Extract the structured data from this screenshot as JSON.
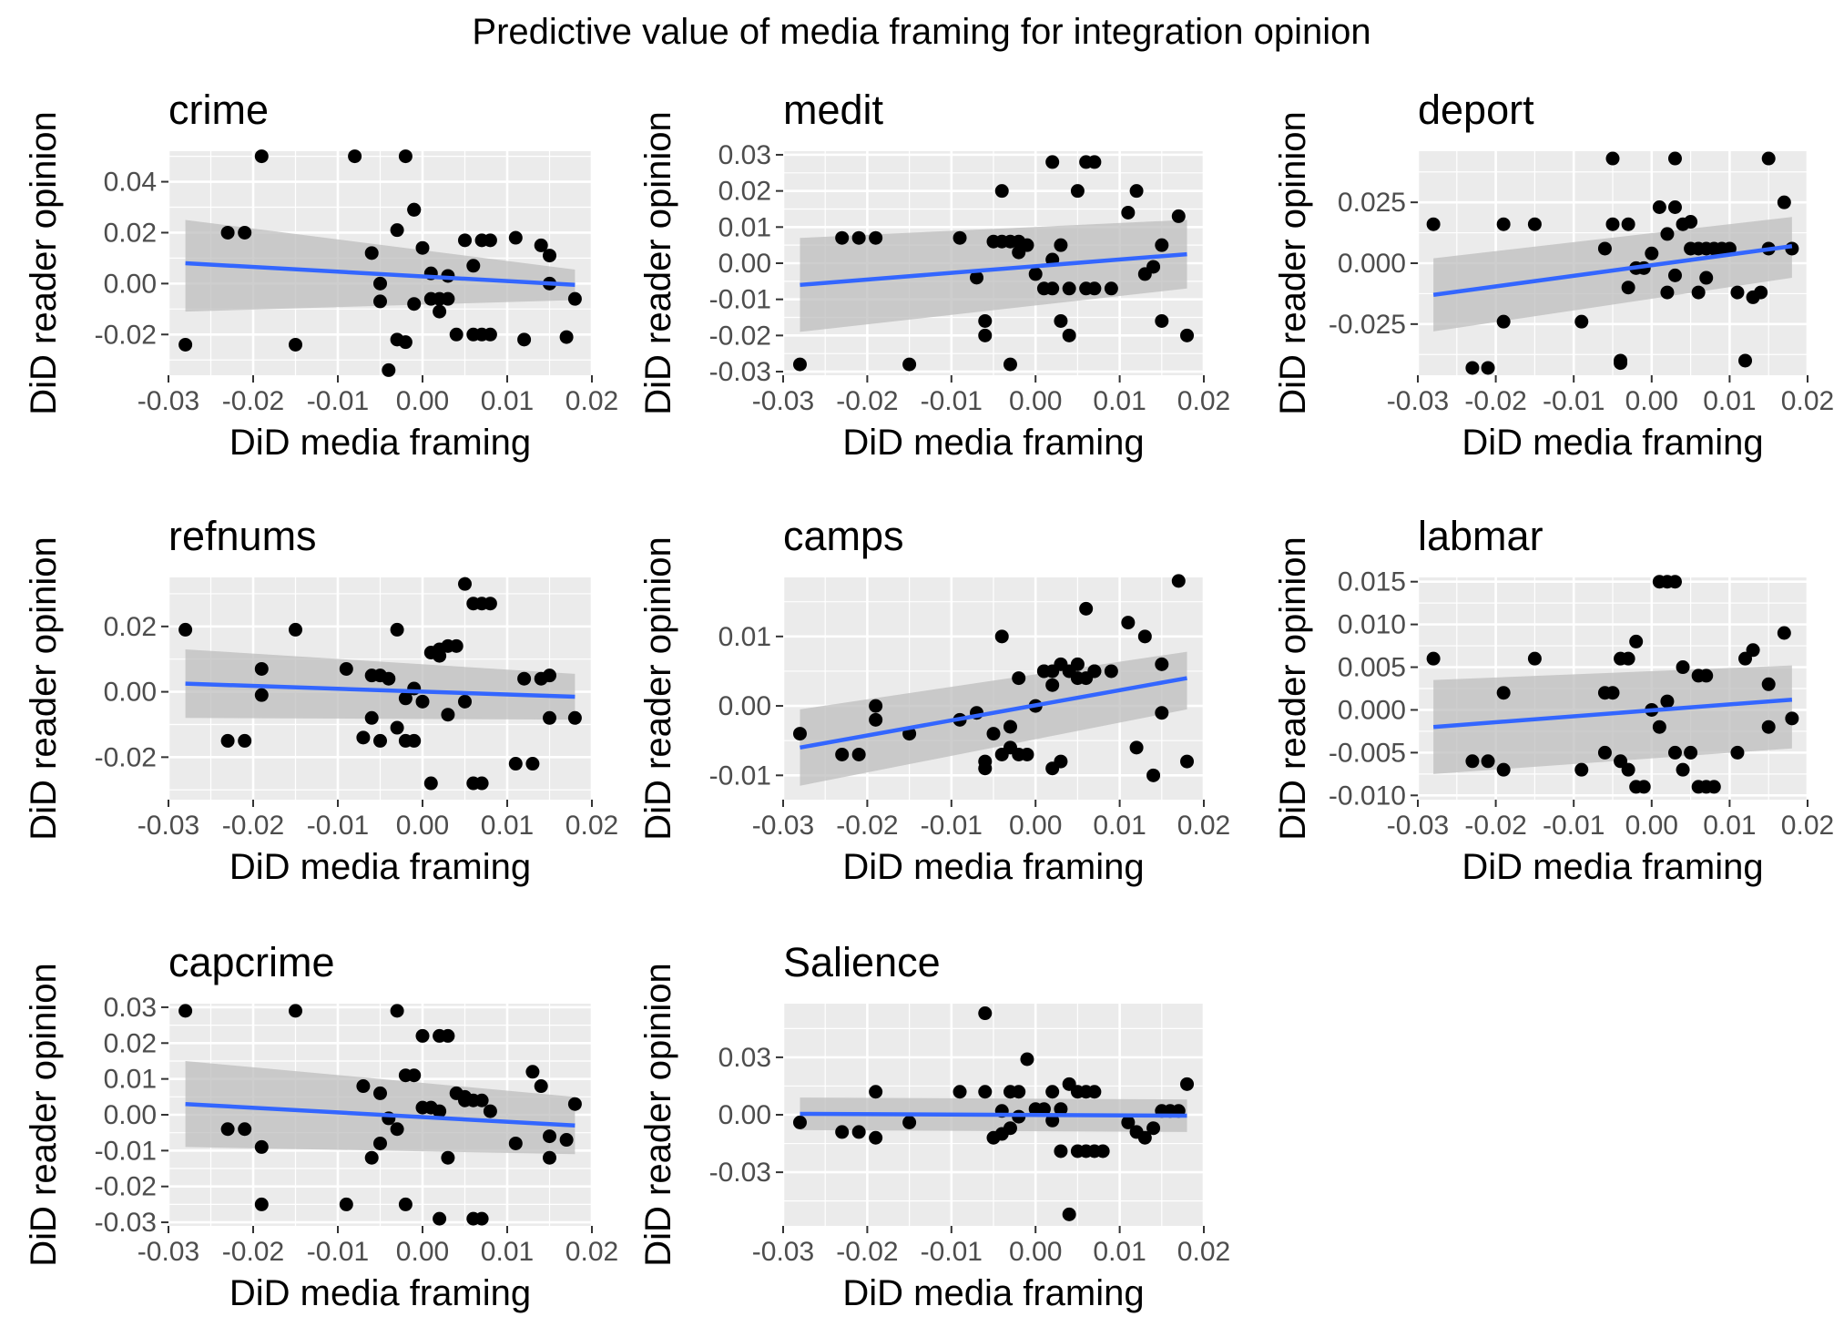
{
  "figure": {
    "title": "Predictive value of media framing for integration opinion",
    "colors": {
      "panel_bg": "#EBEBEB",
      "grid": "#FFFFFF",
      "point": "#000000",
      "fit_line": "#3366FF",
      "ribbon": "#BDBDBD",
      "tick_text": "#4D4D4D"
    }
  },
  "chart_data": [
    {
      "type": "scatter",
      "title": "crime",
      "xlabel": "DiD media framing",
      "ylabel": "DiD reader opinion",
      "xlim": [
        -0.03,
        0.02
      ],
      "ylim": [
        -0.036,
        0.052
      ],
      "xticks": [
        -0.03,
        -0.02,
        -0.01,
        0.0,
        0.01,
        0.02
      ],
      "xtick_labels": [
        "-0.03",
        "-0.02",
        "-0.01",
        "0.00",
        "0.01",
        "0.02"
      ],
      "yticks": [
        -0.02,
        0.0,
        0.02,
        0.04
      ],
      "ytick_labels": [
        "-0.02",
        "0.00",
        "0.02",
        "0.04"
      ],
      "fit": {
        "x": [
          -0.028,
          0.018
        ],
        "y": [
          0.008,
          -0.0005
        ],
        "ci_lower": [
          -0.011,
          -0.0065
        ],
        "ci_upper": [
          0.025,
          0.0055
        ]
      },
      "points": {
        "x": [
          -0.028,
          -0.023,
          -0.021,
          -0.019,
          -0.015,
          -0.008,
          -0.006,
          -0.005,
          -0.005,
          -0.004,
          -0.003,
          -0.003,
          -0.002,
          -0.002,
          -0.001,
          -0.001,
          -0.001,
          0.0,
          0.001,
          0.001,
          0.002,
          0.002,
          0.003,
          0.003,
          0.004,
          0.005,
          0.006,
          0.006,
          0.007,
          0.007,
          0.008,
          0.008,
          0.011,
          0.012,
          0.014,
          0.015,
          0.015,
          0.017,
          0.018
        ],
        "y": [
          -0.024,
          0.02,
          0.02,
          0.05,
          -0.024,
          0.05,
          0.012,
          -0.007,
          0.0,
          -0.034,
          0.021,
          -0.022,
          -0.023,
          0.05,
          0.029,
          -0.008,
          0.029,
          0.014,
          -0.006,
          0.004,
          -0.006,
          -0.011,
          -0.006,
          0.003,
          -0.02,
          0.017,
          -0.02,
          0.007,
          0.017,
          -0.02,
          0.017,
          -0.02,
          0.018,
          -0.022,
          0.015,
          0.011,
          0.0,
          -0.021,
          -0.006
        ]
      }
    },
    {
      "type": "scatter",
      "title": "medit",
      "xlabel": "DiD media framing",
      "ylabel": "DiD reader opinion",
      "xlim": [
        -0.03,
        0.02
      ],
      "ylim": [
        -0.031,
        0.031
      ],
      "xticks": [
        -0.03,
        -0.02,
        -0.01,
        0.0,
        0.01,
        0.02
      ],
      "xtick_labels": [
        "-0.03",
        "-0.02",
        "-0.01",
        "0.00",
        "0.01",
        "0.02"
      ],
      "yticks": [
        -0.03,
        -0.02,
        -0.01,
        0.0,
        0.01,
        0.02,
        0.03
      ],
      "ytick_labels": [
        "-0.03",
        "-0.02",
        "-0.01",
        "0.00",
        "0.01",
        "0.02",
        "0.03"
      ],
      "fit": {
        "x": [
          -0.028,
          0.018
        ],
        "y": [
          -0.006,
          0.0025
        ],
        "ci_lower": [
          -0.019,
          -0.007
        ],
        "ci_upper": [
          0.007,
          0.012
        ]
      },
      "points": {
        "x": [
          -0.028,
          -0.023,
          -0.021,
          -0.019,
          -0.015,
          -0.009,
          -0.007,
          -0.006,
          -0.006,
          -0.005,
          -0.004,
          -0.004,
          -0.003,
          -0.003,
          -0.002,
          -0.002,
          -0.001,
          0.0,
          0.001,
          0.002,
          0.002,
          0.002,
          0.003,
          0.003,
          0.004,
          0.004,
          0.005,
          0.006,
          0.006,
          0.007,
          0.007,
          0.009,
          0.011,
          0.012,
          0.013,
          0.014,
          0.015,
          0.015,
          0.017,
          0.018
        ],
        "y": [
          -0.028,
          0.007,
          0.007,
          0.007,
          -0.028,
          0.007,
          -0.004,
          -0.02,
          -0.016,
          0.006,
          0.006,
          0.02,
          -0.028,
          0.006,
          0.006,
          0.003,
          0.005,
          -0.003,
          -0.007,
          0.028,
          -0.007,
          0.001,
          -0.016,
          0.005,
          -0.02,
          -0.007,
          0.02,
          -0.007,
          0.028,
          0.028,
          -0.007,
          -0.007,
          0.014,
          0.02,
          -0.003,
          -0.001,
          -0.016,
          0.005,
          0.013,
          -0.02
        ]
      }
    },
    {
      "type": "scatter",
      "title": "deport",
      "xlabel": "DiD media framing",
      "ylabel": "DiD reader opinion",
      "xlim": [
        -0.03,
        0.02
      ],
      "ylim": [
        -0.046,
        0.046
      ],
      "xticks": [
        -0.03,
        -0.02,
        -0.01,
        0.0,
        0.01,
        0.02
      ],
      "xtick_labels": [
        "-0.03",
        "-0.02",
        "-0.01",
        "0.00",
        "0.01",
        "0.02"
      ],
      "yticks": [
        -0.025,
        0.0,
        0.025
      ],
      "ytick_labels": [
        "-0.025",
        "0.000",
        "0.025"
      ],
      "fit": {
        "x": [
          -0.028,
          0.018
        ],
        "y": [
          -0.013,
          0.007
        ],
        "ci_lower": [
          -0.028,
          -0.006
        ],
        "ci_upper": [
          0.002,
          0.019
        ]
      },
      "points": {
        "x": [
          -0.028,
          -0.023,
          -0.021,
          -0.019,
          -0.019,
          -0.015,
          -0.009,
          -0.006,
          -0.005,
          -0.005,
          -0.004,
          -0.004,
          -0.003,
          -0.003,
          -0.002,
          -0.001,
          0.0,
          0.001,
          0.002,
          0.002,
          0.003,
          0.003,
          0.003,
          0.004,
          0.005,
          0.005,
          0.006,
          0.006,
          0.007,
          0.007,
          0.008,
          0.009,
          0.01,
          0.011,
          0.012,
          0.013,
          0.014,
          0.015,
          0.015,
          0.017,
          0.018
        ],
        "y": [
          0.016,
          -0.043,
          -0.043,
          0.016,
          -0.024,
          0.016,
          -0.024,
          0.006,
          0.043,
          0.016,
          -0.04,
          -0.041,
          0.016,
          -0.01,
          -0.002,
          -0.002,
          0.004,
          0.023,
          -0.012,
          0.012,
          0.043,
          0.023,
          -0.005,
          0.016,
          0.006,
          0.017,
          0.006,
          -0.012,
          0.006,
          -0.006,
          0.006,
          0.006,
          0.006,
          -0.012,
          -0.04,
          -0.014,
          -0.012,
          0.043,
          0.006,
          0.025,
          0.006
        ]
      }
    },
    {
      "type": "scatter",
      "title": "refnums",
      "xlabel": "DiD media framing",
      "ylabel": "DiD reader opinion",
      "xlim": [
        -0.03,
        0.02
      ],
      "ylim": [
        -0.033,
        0.035
      ],
      "xticks": [
        -0.03,
        -0.02,
        -0.01,
        0.0,
        0.01,
        0.02
      ],
      "xtick_labels": [
        "-0.03",
        "-0.02",
        "-0.01",
        "0.00",
        "0.01",
        "0.02"
      ],
      "yticks": [
        -0.02,
        0.0,
        0.02
      ],
      "ytick_labels": [
        "-0.02",
        "0.00",
        "0.02"
      ],
      "fit": {
        "x": [
          -0.028,
          0.018
        ],
        "y": [
          0.0025,
          -0.0015
        ],
        "ci_lower": [
          -0.008,
          -0.0085
        ],
        "ci_upper": [
          0.013,
          0.0055
        ]
      },
      "points": {
        "x": [
          -0.028,
          -0.023,
          -0.021,
          -0.019,
          -0.019,
          -0.015,
          -0.009,
          -0.007,
          -0.006,
          -0.006,
          -0.005,
          -0.005,
          -0.004,
          -0.003,
          -0.003,
          -0.002,
          -0.002,
          -0.001,
          -0.001,
          0.0,
          0.001,
          0.001,
          0.002,
          0.002,
          0.003,
          0.003,
          0.004,
          0.005,
          0.005,
          0.006,
          0.006,
          0.007,
          0.007,
          0.008,
          0.011,
          0.012,
          0.013,
          0.014,
          0.015,
          0.015,
          0.018
        ],
        "y": [
          0.019,
          -0.015,
          -0.015,
          0.007,
          -0.001,
          0.019,
          0.007,
          -0.014,
          0.005,
          -0.008,
          0.005,
          -0.015,
          0.004,
          -0.011,
          0.019,
          -0.015,
          -0.002,
          0.001,
          -0.015,
          -0.003,
          0.012,
          -0.028,
          0.011,
          0.013,
          0.014,
          -0.007,
          0.014,
          0.033,
          -0.003,
          0.027,
          -0.028,
          0.027,
          -0.028,
          0.027,
          -0.022,
          0.004,
          -0.022,
          0.004,
          0.005,
          -0.008,
          -0.008
        ]
      }
    },
    {
      "type": "scatter",
      "title": "camps",
      "xlabel": "DiD media framing",
      "ylabel": "DiD reader opinion",
      "xlim": [
        -0.03,
        0.02
      ],
      "ylim": [
        -0.0135,
        0.0185
      ],
      "xticks": [
        -0.03,
        -0.02,
        -0.01,
        0.0,
        0.01,
        0.02
      ],
      "xtick_labels": [
        "-0.03",
        "-0.02",
        "-0.01",
        "0.00",
        "0.01",
        "0.02"
      ],
      "yticks": [
        -0.01,
        0.0,
        0.01
      ],
      "ytick_labels": [
        "-0.01",
        "0.00",
        "0.01"
      ],
      "fit": {
        "x": [
          -0.028,
          0.018
        ],
        "y": [
          -0.006,
          0.004
        ],
        "ci_lower": [
          -0.0115,
          -0.0005
        ],
        "ci_upper": [
          -0.0005,
          0.0078
        ]
      },
      "points": {
        "x": [
          -0.028,
          -0.023,
          -0.021,
          -0.019,
          -0.019,
          -0.015,
          -0.009,
          -0.007,
          -0.006,
          -0.006,
          -0.005,
          -0.004,
          -0.004,
          -0.003,
          -0.003,
          -0.002,
          -0.002,
          -0.001,
          0.0,
          0.001,
          0.001,
          0.002,
          0.002,
          0.002,
          0.003,
          0.003,
          0.004,
          0.005,
          0.005,
          0.006,
          0.006,
          0.007,
          0.007,
          0.009,
          0.011,
          0.012,
          0.013,
          0.014,
          0.015,
          0.015,
          0.017,
          0.018
        ],
        "y": [
          -0.004,
          -0.007,
          -0.007,
          -0.002,
          -0.0,
          -0.004,
          -0.002,
          -0.001,
          -0.008,
          -0.009,
          -0.004,
          -0.007,
          0.01,
          -0.006,
          -0.003,
          -0.007,
          0.004,
          -0.007,
          0.0,
          0.005,
          0.005,
          -0.009,
          0.003,
          0.005,
          0.006,
          -0.008,
          0.005,
          0.004,
          0.006,
          0.014,
          0.004,
          0.005,
          0.005,
          0.005,
          0.012,
          -0.006,
          0.01,
          -0.01,
          -0.001,
          0.006,
          0.018,
          -0.008
        ]
      }
    },
    {
      "type": "scatter",
      "title": "labmar",
      "xlabel": "DiD media framing",
      "ylabel": "DiD reader opinion",
      "xlim": [
        -0.03,
        0.02
      ],
      "ylim": [
        -0.0105,
        0.0155
      ],
      "xticks": [
        -0.03,
        -0.02,
        -0.01,
        0.0,
        0.01,
        0.02
      ],
      "xtick_labels": [
        "-0.03",
        "-0.02",
        "-0.01",
        "0.00",
        "0.01",
        "0.02"
      ],
      "yticks": [
        -0.01,
        -0.005,
        0.0,
        0.005,
        0.01,
        0.015
      ],
      "ytick_labels": [
        "-0.010",
        "-0.005",
        "0.000",
        "0.005",
        "0.010",
        "0.015"
      ],
      "fit": {
        "x": [
          -0.028,
          0.018
        ],
        "y": [
          -0.002,
          0.0012
        ],
        "ci_lower": [
          -0.0075,
          -0.0045
        ],
        "ci_upper": [
          0.0035,
          0.0052
        ]
      },
      "points": {
        "x": [
          -0.028,
          -0.023,
          -0.021,
          -0.019,
          -0.019,
          -0.015,
          -0.009,
          -0.006,
          -0.006,
          -0.005,
          -0.004,
          -0.004,
          -0.003,
          -0.003,
          -0.002,
          -0.002,
          -0.001,
          0.0,
          0.001,
          0.001,
          0.002,
          0.002,
          0.003,
          0.003,
          0.004,
          0.004,
          0.005,
          0.006,
          0.006,
          0.007,
          0.007,
          0.008,
          0.011,
          0.012,
          0.013,
          0.015,
          0.015,
          0.017,
          0.018
        ],
        "y": [
          0.006,
          -0.006,
          -0.006,
          0.002,
          -0.007,
          0.006,
          -0.007,
          0.002,
          -0.005,
          0.002,
          -0.006,
          0.006,
          -0.007,
          0.006,
          -0.009,
          0.008,
          -0.009,
          0.0,
          0.015,
          -0.002,
          0.015,
          0.001,
          0.015,
          -0.005,
          0.005,
          -0.007,
          -0.005,
          -0.009,
          0.004,
          -0.009,
          0.004,
          -0.009,
          -0.005,
          0.006,
          0.007,
          -0.002,
          0.003,
          0.009,
          -0.001
        ]
      }
    },
    {
      "type": "scatter",
      "title": "capcrime",
      "xlabel": "DiD media framing",
      "ylabel": "DiD reader opinion",
      "xlim": [
        -0.03,
        0.02
      ],
      "ylim": [
        -0.031,
        0.031
      ],
      "xticks": [
        -0.03,
        -0.02,
        -0.01,
        0.0,
        0.01,
        0.02
      ],
      "xtick_labels": [
        "-0.03",
        "-0.02",
        "-0.01",
        "0.00",
        "0.01",
        "0.02"
      ],
      "yticks": [
        -0.03,
        -0.02,
        -0.01,
        0.0,
        0.01,
        0.02,
        0.03
      ],
      "ytick_labels": [
        "-0.03",
        "-0.02",
        "-0.01",
        "0.00",
        "0.01",
        "0.02",
        "0.03"
      ],
      "fit": {
        "x": [
          -0.028,
          0.018
        ],
        "y": [
          0.003,
          -0.003
        ],
        "ci_lower": [
          -0.009,
          -0.011
        ],
        "ci_upper": [
          0.015,
          0.005
        ]
      },
      "points": {
        "x": [
          -0.028,
          -0.023,
          -0.021,
          -0.019,
          -0.019,
          -0.015,
          -0.009,
          -0.007,
          -0.006,
          -0.005,
          -0.005,
          -0.004,
          -0.003,
          -0.003,
          -0.002,
          -0.002,
          -0.001,
          0.0,
          0.0,
          0.001,
          0.002,
          0.002,
          0.002,
          0.003,
          0.003,
          0.004,
          0.005,
          0.005,
          0.006,
          0.006,
          0.007,
          0.007,
          0.008,
          0.011,
          0.013,
          0.014,
          0.015,
          0.015,
          0.017,
          0.018
        ],
        "y": [
          0.029,
          -0.004,
          -0.004,
          -0.009,
          -0.025,
          0.029,
          -0.025,
          0.008,
          -0.012,
          -0.008,
          0.006,
          -0.001,
          -0.004,
          0.029,
          0.011,
          -0.025,
          0.011,
          0.022,
          0.002,
          0.002,
          0.022,
          -0.029,
          0.001,
          0.022,
          -0.012,
          0.006,
          0.005,
          0.004,
          -0.029,
          0.004,
          -0.029,
          0.004,
          0.001,
          -0.008,
          0.012,
          0.008,
          -0.012,
          -0.006,
          -0.007,
          0.003
        ]
      }
    },
    {
      "type": "scatter",
      "title": "Salience",
      "xlabel": "DiD media framing",
      "ylabel": "DiD reader opinion",
      "xlim": [
        -0.03,
        0.02
      ],
      "ylim": [
        -0.058,
        0.058
      ],
      "xticks": [
        -0.03,
        -0.02,
        -0.01,
        0.0,
        0.01,
        0.02
      ],
      "xtick_labels": [
        "-0.03",
        "-0.02",
        "-0.01",
        "0.00",
        "0.01",
        "0.02"
      ],
      "yticks": [
        -0.03,
        0.0,
        0.03
      ],
      "ytick_labels": [
        "-0.03",
        "0.00",
        "0.03"
      ],
      "fit": {
        "x": [
          -0.028,
          0.018
        ],
        "y": [
          0.0005,
          -0.0005
        ],
        "ci_lower": [
          -0.008,
          -0.009
        ],
        "ci_upper": [
          0.009,
          0.008
        ]
      },
      "points": {
        "x": [
          -0.028,
          -0.023,
          -0.021,
          -0.019,
          -0.019,
          -0.015,
          -0.009,
          -0.006,
          -0.006,
          -0.005,
          -0.004,
          -0.004,
          -0.003,
          -0.003,
          -0.002,
          -0.002,
          -0.001,
          0.0,
          0.001,
          0.002,
          0.002,
          0.003,
          0.003,
          0.004,
          0.004,
          0.005,
          0.005,
          0.006,
          0.006,
          0.007,
          0.007,
          0.008,
          0.011,
          0.012,
          0.013,
          0.014,
          0.015,
          0.016,
          0.017,
          0.018
        ],
        "y": [
          -0.004,
          -0.009,
          -0.009,
          0.012,
          -0.012,
          -0.004,
          0.012,
          0.053,
          0.012,
          -0.012,
          -0.01,
          0.002,
          -0.007,
          0.012,
          -0.001,
          0.012,
          0.029,
          0.003,
          0.003,
          0.012,
          -0.003,
          -0.019,
          0.003,
          0.016,
          -0.052,
          -0.019,
          0.012,
          0.012,
          -0.019,
          0.012,
          -0.019,
          -0.019,
          -0.004,
          -0.009,
          -0.012,
          -0.007,
          0.002,
          0.002,
          0.002,
          0.016
        ]
      }
    }
  ]
}
